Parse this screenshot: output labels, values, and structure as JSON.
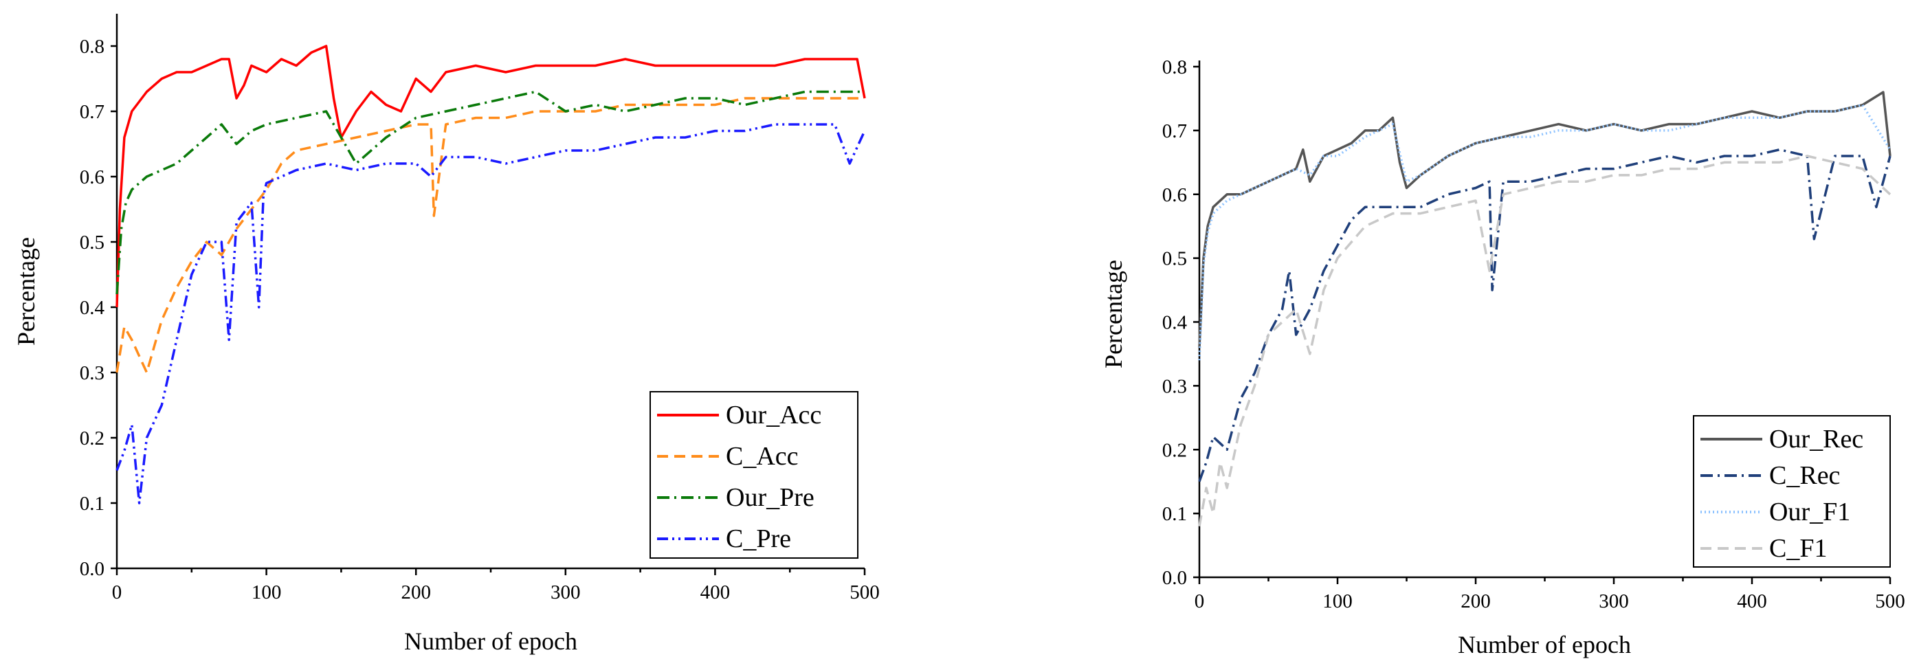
{
  "chart_data": [
    {
      "type": "line",
      "title": "",
      "xlabel": "Number of epoch",
      "ylabel": "Percentage",
      "xlim": [
        0,
        500
      ],
      "ylim": [
        0,
        0.85
      ],
      "xticks": [
        0,
        100,
        200,
        300,
        400,
        500
      ],
      "yticks": [
        "0.0",
        "0.1",
        "0.2",
        "0.3",
        "0.4",
        "0.5",
        "0.6",
        "0.7",
        "0.8"
      ],
      "grid": false,
      "legend_position": "bottom-right",
      "series": [
        {
          "name": "Our_Acc",
          "color": "#ff0000",
          "dash": "solid",
          "x": [
            0,
            2,
            5,
            10,
            20,
            30,
            40,
            50,
            60,
            70,
            75,
            80,
            85,
            90,
            100,
            110,
            120,
            130,
            140,
            145,
            150,
            160,
            170,
            180,
            190,
            200,
            210,
            220,
            240,
            260,
            280,
            300,
            320,
            340,
            360,
            380,
            400,
            420,
            440,
            460,
            480,
            495,
            500
          ],
          "y": [
            0.4,
            0.55,
            0.66,
            0.7,
            0.73,
            0.75,
            0.76,
            0.76,
            0.77,
            0.78,
            0.78,
            0.72,
            0.74,
            0.77,
            0.76,
            0.78,
            0.77,
            0.79,
            0.8,
            0.72,
            0.66,
            0.7,
            0.73,
            0.71,
            0.7,
            0.75,
            0.73,
            0.76,
            0.77,
            0.76,
            0.77,
            0.77,
            0.77,
            0.78,
            0.77,
            0.77,
            0.77,
            0.77,
            0.77,
            0.78,
            0.78,
            0.78,
            0.72
          ]
        },
        {
          "name": "C_Acc",
          "color": "#ff8c1a",
          "dash": "dashed",
          "x": [
            0,
            5,
            10,
            20,
            30,
            40,
            50,
            60,
            70,
            80,
            90,
            100,
            110,
            120,
            140,
            160,
            180,
            200,
            210,
            212,
            220,
            240,
            260,
            280,
            300,
            320,
            340,
            360,
            380,
            400,
            420,
            440,
            460,
            480,
            500
          ],
          "y": [
            0.3,
            0.37,
            0.35,
            0.3,
            0.38,
            0.43,
            0.47,
            0.5,
            0.48,
            0.52,
            0.55,
            0.58,
            0.62,
            0.64,
            0.65,
            0.66,
            0.67,
            0.68,
            0.68,
            0.54,
            0.68,
            0.69,
            0.69,
            0.7,
            0.7,
            0.7,
            0.71,
            0.71,
            0.71,
            0.71,
            0.72,
            0.72,
            0.72,
            0.72,
            0.72
          ]
        },
        {
          "name": "Our_Pre",
          "color": "#0a7a0a",
          "dash": "dashdot",
          "x": [
            0,
            3,
            6,
            10,
            20,
            30,
            40,
            50,
            60,
            70,
            80,
            90,
            100,
            120,
            140,
            160,
            180,
            200,
            220,
            240,
            260,
            280,
            300,
            320,
            340,
            360,
            380,
            400,
            420,
            440,
            460,
            480,
            500
          ],
          "y": [
            0.42,
            0.52,
            0.56,
            0.58,
            0.6,
            0.61,
            0.62,
            0.64,
            0.66,
            0.68,
            0.65,
            0.67,
            0.68,
            0.69,
            0.7,
            0.62,
            0.66,
            0.69,
            0.7,
            0.71,
            0.72,
            0.73,
            0.7,
            0.71,
            0.7,
            0.71,
            0.72,
            0.72,
            0.71,
            0.72,
            0.73,
            0.73,
            0.73
          ]
        },
        {
          "name": "C_Pre",
          "color": "#1a1aff",
          "dash": "dashdotdot",
          "x": [
            0,
            5,
            10,
            15,
            20,
            30,
            40,
            50,
            60,
            70,
            75,
            80,
            90,
            95,
            98,
            100,
            110,
            120,
            140,
            160,
            180,
            200,
            210,
            220,
            240,
            260,
            280,
            300,
            320,
            340,
            360,
            380,
            400,
            420,
            440,
            460,
            480,
            490,
            500
          ],
          "y": [
            0.15,
            0.18,
            0.22,
            0.1,
            0.2,
            0.25,
            0.35,
            0.45,
            0.5,
            0.5,
            0.35,
            0.53,
            0.56,
            0.4,
            0.57,
            0.59,
            0.6,
            0.61,
            0.62,
            0.61,
            0.62,
            0.62,
            0.6,
            0.63,
            0.63,
            0.62,
            0.63,
            0.64,
            0.64,
            0.65,
            0.66,
            0.66,
            0.67,
            0.67,
            0.68,
            0.68,
            0.68,
            0.62,
            0.67
          ]
        }
      ]
    },
    {
      "type": "line",
      "title": "",
      "xlabel": "Number of epoch",
      "ylabel": "Percentage",
      "xlim": [
        0,
        500
      ],
      "ylim": [
        0,
        0.8
      ],
      "xticks": [
        0,
        100,
        200,
        300,
        400,
        500
      ],
      "yticks": [
        "0.0",
        "0.1",
        "0.2",
        "0.3",
        "0.4",
        "0.5",
        "0.6",
        "0.7",
        "0.8"
      ],
      "grid": false,
      "legend_position": "bottom-right",
      "series": [
        {
          "name": "Our_Rec",
          "color": "#555555",
          "dash": "solid",
          "x": [
            0,
            3,
            6,
            10,
            20,
            30,
            40,
            50,
            60,
            70,
            75,
            80,
            90,
            100,
            110,
            120,
            130,
            140,
            145,
            150,
            160,
            180,
            200,
            220,
            240,
            260,
            280,
            300,
            320,
            340,
            360,
            380,
            400,
            420,
            440,
            460,
            480,
            495,
            500
          ],
          "y": [
            0.36,
            0.5,
            0.55,
            0.58,
            0.6,
            0.6,
            0.61,
            0.62,
            0.63,
            0.64,
            0.67,
            0.62,
            0.66,
            0.67,
            0.68,
            0.7,
            0.7,
            0.72,
            0.65,
            0.61,
            0.63,
            0.66,
            0.68,
            0.69,
            0.7,
            0.71,
            0.7,
            0.71,
            0.7,
            0.71,
            0.71,
            0.72,
            0.73,
            0.72,
            0.73,
            0.73,
            0.74,
            0.76,
            0.66
          ]
        },
        {
          "name": "C_Rec",
          "color": "#1f3f7a",
          "dash": "dashdot",
          "x": [
            0,
            5,
            10,
            20,
            30,
            40,
            50,
            60,
            65,
            70,
            80,
            90,
            100,
            110,
            120,
            140,
            160,
            180,
            200,
            210,
            212,
            220,
            240,
            260,
            280,
            300,
            320,
            340,
            360,
            380,
            400,
            420,
            440,
            445,
            460,
            480,
            490,
            500
          ],
          "y": [
            0.15,
            0.18,
            0.22,
            0.2,
            0.28,
            0.32,
            0.38,
            0.42,
            0.48,
            0.38,
            0.42,
            0.48,
            0.52,
            0.56,
            0.58,
            0.58,
            0.58,
            0.6,
            0.61,
            0.62,
            0.45,
            0.62,
            0.62,
            0.63,
            0.64,
            0.64,
            0.65,
            0.66,
            0.65,
            0.66,
            0.66,
            0.67,
            0.66,
            0.53,
            0.66,
            0.66,
            0.58,
            0.66
          ]
        },
        {
          "name": "Our_F1",
          "color": "#8fc3ff",
          "dash": "dotted",
          "x": [
            0,
            3,
            6,
            10,
            20,
            30,
            40,
            50,
            60,
            70,
            80,
            90,
            100,
            120,
            140,
            150,
            160,
            180,
            200,
            220,
            240,
            260,
            280,
            300,
            320,
            340,
            360,
            380,
            400,
            420,
            440,
            460,
            480,
            500
          ],
          "y": [
            0.34,
            0.49,
            0.54,
            0.57,
            0.59,
            0.6,
            0.61,
            0.62,
            0.63,
            0.64,
            0.63,
            0.66,
            0.66,
            0.69,
            0.71,
            0.62,
            0.63,
            0.66,
            0.68,
            0.69,
            0.69,
            0.7,
            0.7,
            0.71,
            0.7,
            0.7,
            0.71,
            0.72,
            0.72,
            0.72,
            0.73,
            0.73,
            0.74,
            0.67
          ]
        },
        {
          "name": "C_F1",
          "color": "#c8c8c8",
          "dash": "dashed",
          "x": [
            0,
            5,
            10,
            15,
            20,
            30,
            40,
            50,
            60,
            70,
            80,
            90,
            100,
            120,
            140,
            160,
            180,
            200,
            210,
            220,
            240,
            260,
            280,
            300,
            320,
            340,
            360,
            380,
            400,
            420,
            440,
            460,
            480,
            500
          ],
          "y": [
            0.08,
            0.14,
            0.1,
            0.18,
            0.14,
            0.24,
            0.3,
            0.38,
            0.4,
            0.42,
            0.35,
            0.45,
            0.5,
            0.55,
            0.57,
            0.57,
            0.58,
            0.59,
            0.48,
            0.6,
            0.61,
            0.62,
            0.62,
            0.63,
            0.63,
            0.64,
            0.64,
            0.65,
            0.65,
            0.65,
            0.66,
            0.65,
            0.64,
            0.6
          ]
        }
      ]
    }
  ]
}
